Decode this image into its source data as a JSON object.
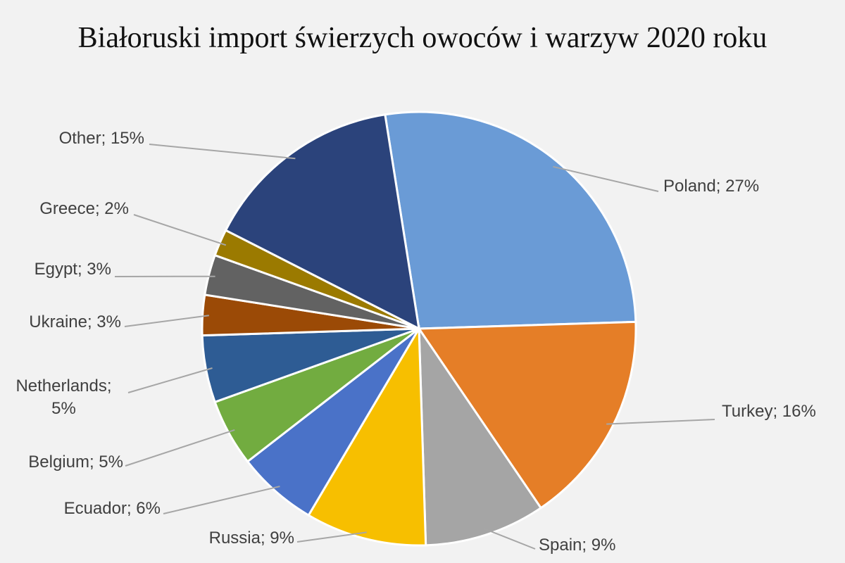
{
  "chart_data": {
    "type": "pie",
    "title": "Białoruski import świerzych owoców i warzyw 2020 roku",
    "values": [
      27,
      16,
      9,
      9,
      6,
      5,
      5,
      3,
      3,
      2,
      15
    ],
    "value_labels": [
      "Poland; 27%",
      "Turkey; 16%",
      "Spain; 9%",
      "Russia; 9%",
      "Ecuador; 6%",
      "Belgium; 5%",
      "Netherlands; 5%",
      "Ukraine; 3%",
      "Egypt; 3%",
      "Greece; 2%",
      "Other; 15%"
    ],
    "colors": [
      "#6a9bd6",
      "#e57e27",
      "#a5a5a5",
      "#f7bf00",
      "#4a72c8",
      "#72ac40",
      "#2e5c94",
      "#9b4a06",
      "#626262",
      "#9b7a00",
      "#2b437b"
    ]
  }
}
